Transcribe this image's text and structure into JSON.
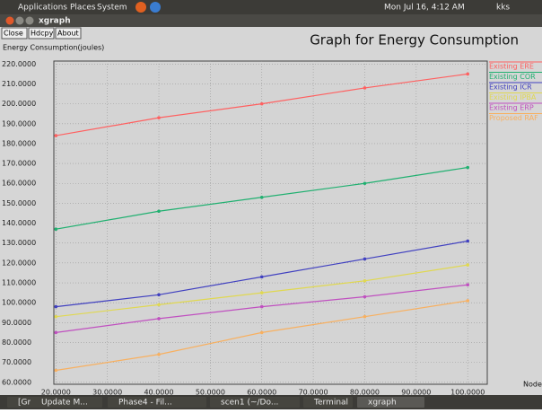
{
  "top_panel": {
    "menus": [
      "Applications",
      "Places",
      "System"
    ],
    "clock": "Mon Jul 16, 4:12 AM",
    "user": "kks"
  },
  "window": {
    "title": "xgraph",
    "buttons": [
      "Close",
      "Hdcpy",
      "About"
    ]
  },
  "chart_data": {
    "type": "line",
    "title": "Graph for Energy Consumption",
    "y_label": "Energy Consumption(joules)",
    "x_label": "Node",
    "x": [
      20,
      40,
      60,
      80,
      100
    ],
    "series": [
      {
        "name": "Existing ERE",
        "color": "#ff6060",
        "values": [
          184,
          193,
          200,
          208,
          215
        ]
      },
      {
        "name": "Existing COR",
        "color": "#20b070",
        "values": [
          137,
          146,
          153,
          160,
          168
        ]
      },
      {
        "name": "Existing ICR",
        "color": "#4040c0",
        "values": [
          98,
          104,
          113,
          122,
          131
        ]
      },
      {
        "name": "Existing IPBA",
        "color": "#e0d850",
        "values": [
          93,
          99,
          105,
          111,
          119
        ]
      },
      {
        "name": "Existing ERP",
        "color": "#c050c0",
        "values": [
          85,
          92,
          98,
          103,
          109
        ]
      },
      {
        "name": "Proposed RAF",
        "color": "#f8b060",
        "values": [
          66,
          74,
          85,
          93,
          101
        ]
      }
    ],
    "xlim": [
      19.6,
      103.8
    ],
    "ylim": [
      59,
      221.5
    ],
    "xticks": [
      {
        "value": 20,
        "label": "20.0000"
      },
      {
        "value": 30,
        "label": "30.0000"
      },
      {
        "value": 40,
        "label": "40.0000"
      },
      {
        "value": 50,
        "label": "50.0000"
      },
      {
        "value": 60,
        "label": "60.0000"
      },
      {
        "value": 70,
        "label": "70.0000"
      },
      {
        "value": 80,
        "label": "80.0000"
      },
      {
        "value": 90,
        "label": "90.0000"
      },
      {
        "value": 100,
        "label": "100.0000"
      }
    ],
    "yticks": [
      {
        "value": 60,
        "label": "60.0000"
      },
      {
        "value": 70,
        "label": "70.0000"
      },
      {
        "value": 80,
        "label": "80.0000"
      },
      {
        "value": 90,
        "label": "90.0000"
      },
      {
        "value": 100,
        "label": "100.0000"
      },
      {
        "value": 110,
        "label": "110.0000"
      },
      {
        "value": 120,
        "label": "120.0000"
      },
      {
        "value": 130,
        "label": "130.0000"
      },
      {
        "value": 140,
        "label": "140.0000"
      },
      {
        "value": 150,
        "label": "150.0000"
      },
      {
        "value": 160,
        "label": "160.0000"
      },
      {
        "value": 170,
        "label": "170.0000"
      },
      {
        "value": 180,
        "label": "180.0000"
      },
      {
        "value": 190,
        "label": "190.0000"
      },
      {
        "value": 200,
        "label": "200.0000"
      },
      {
        "value": 210,
        "label": "210.0000"
      },
      {
        "value": 220,
        "label": "220.0000"
      }
    ],
    "grid": true
  },
  "taskbar": [
    "[Gmail - Illa...",
    "Update M...",
    "Phase4 - Fil...",
    "scen1 (~/Do...",
    "Terminal",
    "xgraph"
  ]
}
